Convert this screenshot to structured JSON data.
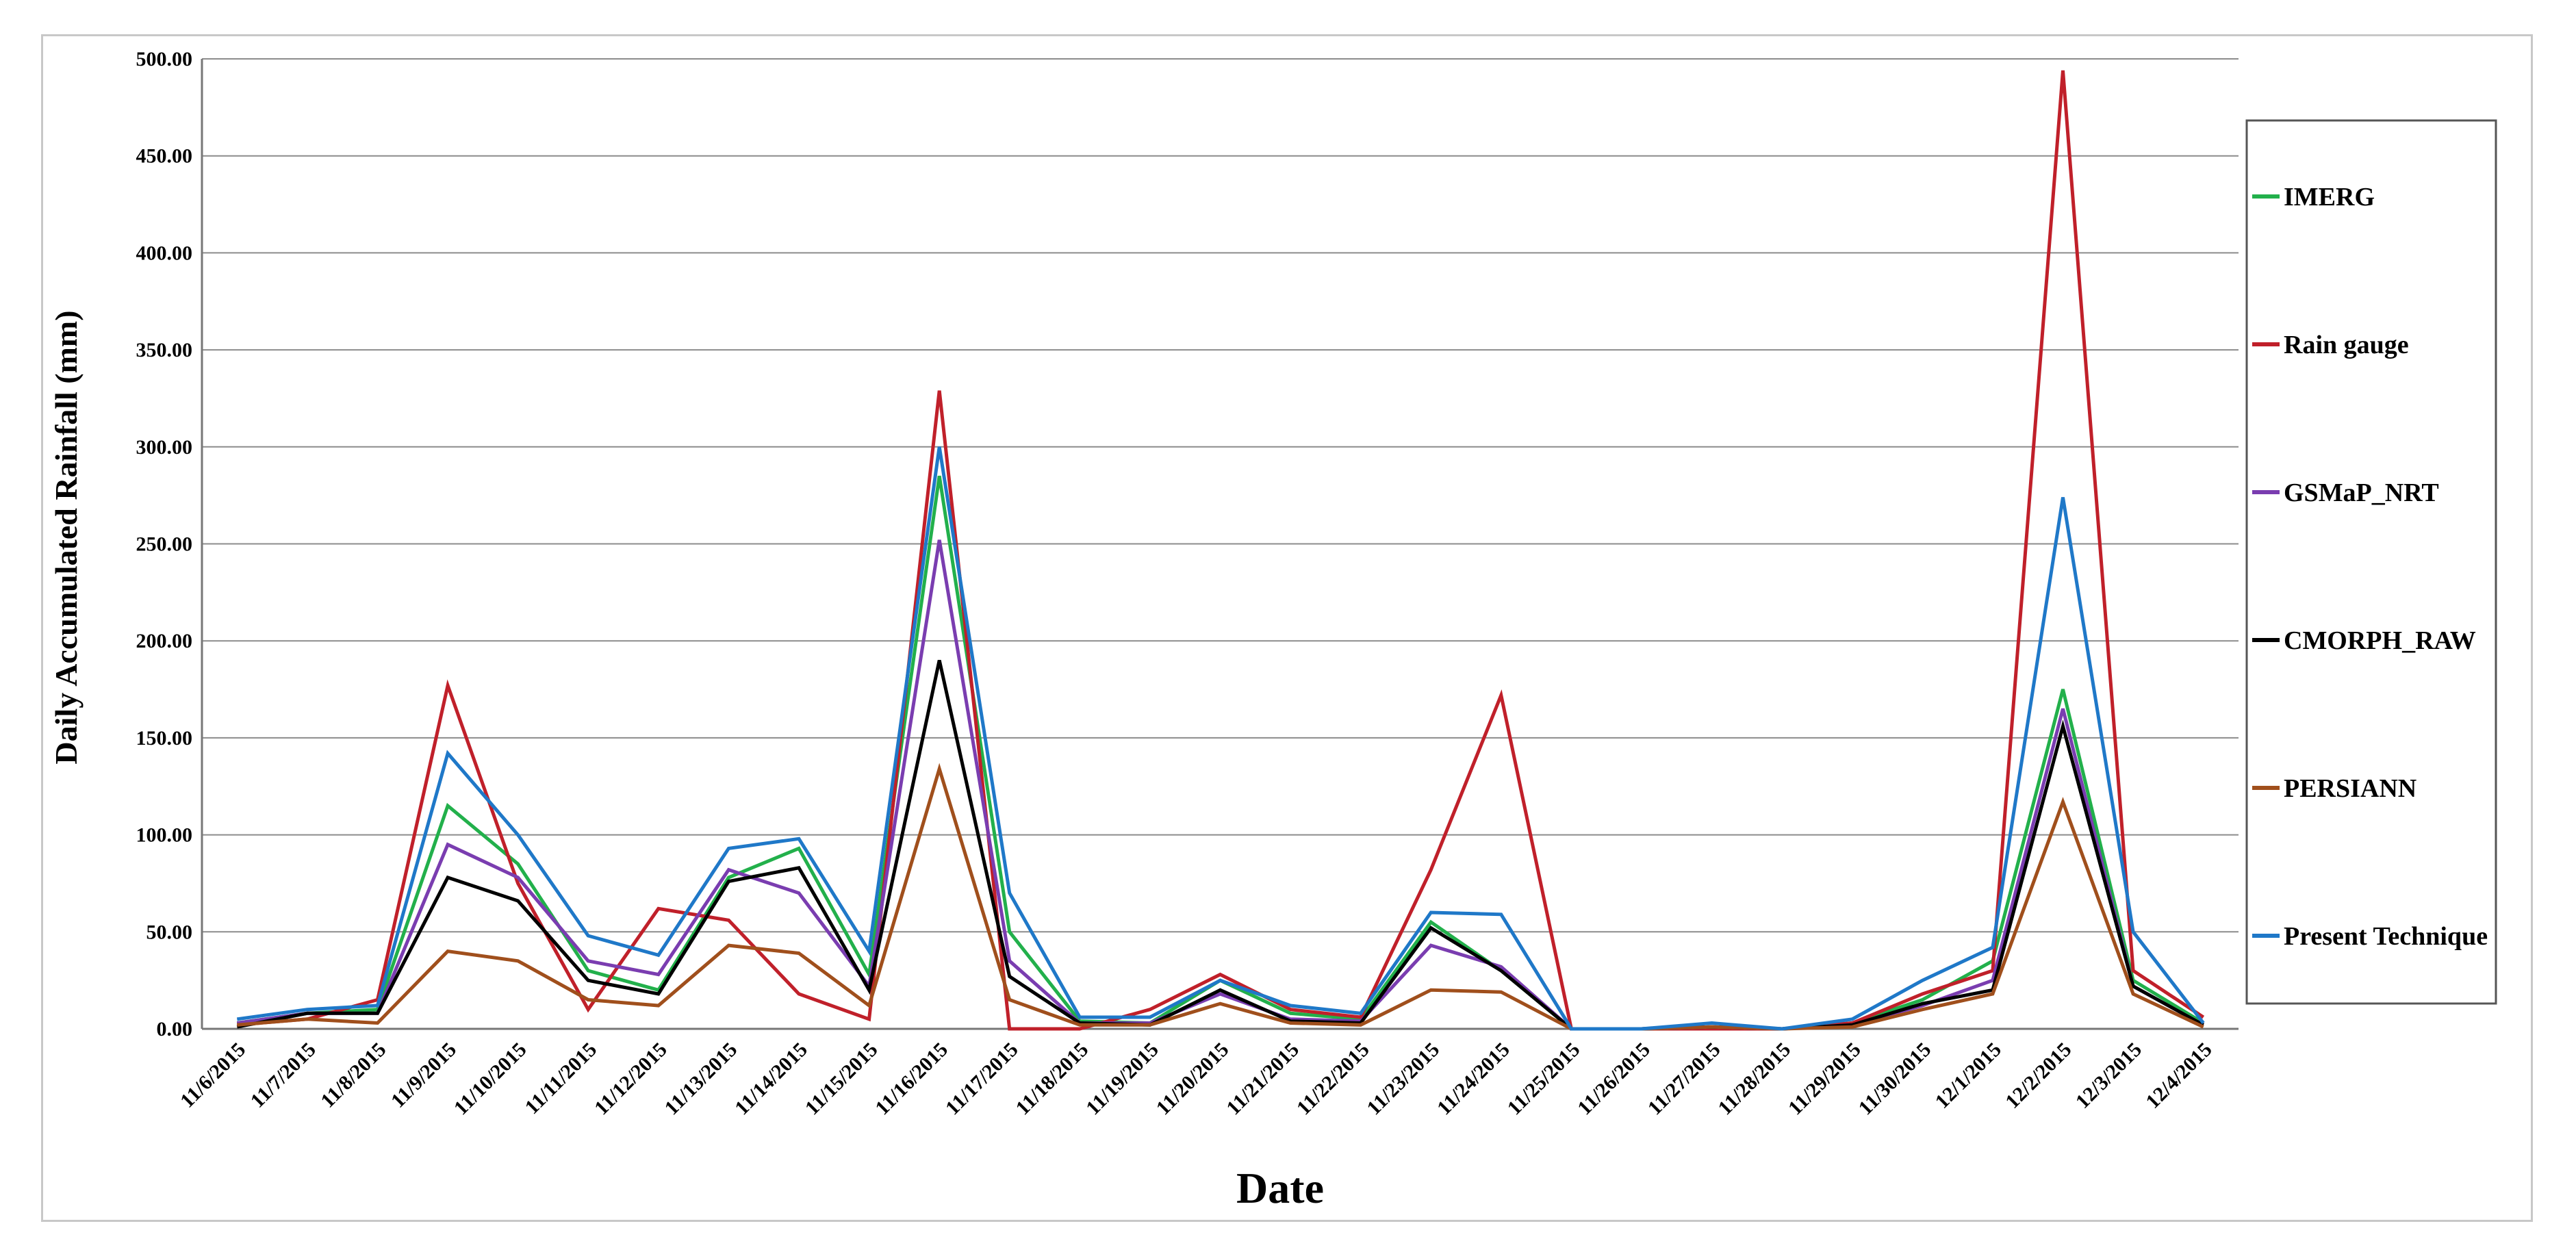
{
  "chart_data": {
    "type": "line",
    "title": "",
    "xlabel": "Date",
    "ylabel": "Daily Accumulated Rainfall (mm)",
    "ylim": [
      0,
      500
    ],
    "ytick_labels": [
      "0.00",
      "50.00",
      "100.00",
      "150.00",
      "200.00",
      "250.00",
      "300.00",
      "350.00",
      "400.00",
      "450.00",
      "500.00"
    ],
    "grid": "horizontal",
    "legend_position": "right",
    "categories": [
      "11/6/2015",
      "11/7/2015",
      "11/8/2015",
      "11/9/2015",
      "11/10/2015",
      "11/11/2015",
      "11/12/2015",
      "11/13/2015",
      "11/14/2015",
      "11/15/2015",
      "11/16/2015",
      "11/17/2015",
      "11/18/2015",
      "11/19/2015",
      "11/20/2015",
      "11/21/2015",
      "11/22/2015",
      "11/23/2015",
      "11/24/2015",
      "11/25/2015",
      "11/26/2015",
      "11/27/2015",
      "11/28/2015",
      "11/29/2015",
      "11/30/2015",
      "12/1/2015",
      "12/2/2015",
      "12/3/2015",
      "12/4/2015"
    ],
    "series": [
      {
        "name": "IMERG",
        "color": "#22b04b",
        "values": [
          3,
          8,
          10,
          115,
          85,
          30,
          20,
          78,
          93,
          28,
          285,
          50,
          4,
          3,
          25,
          8,
          5,
          55,
          30,
          0,
          0,
          1,
          0,
          3,
          15,
          35,
          175,
          25,
          3
        ]
      },
      {
        "name": "Rain gauge",
        "color": "#c0202a",
        "values": [
          2,
          5,
          15,
          177,
          75,
          10,
          62,
          56,
          18,
          5,
          329,
          0,
          0,
          10,
          28,
          10,
          6,
          82,
          172,
          0,
          0,
          0,
          0,
          3,
          18,
          30,
          494,
          30,
          6
        ]
      },
      {
        "name": "GSMaP_NRT",
        "color": "#7a3db0",
        "values": [
          3,
          8,
          8,
          95,
          78,
          35,
          28,
          82,
          70,
          22,
          252,
          35,
          3,
          3,
          18,
          5,
          4,
          43,
          32,
          0,
          0,
          1,
          0,
          2,
          12,
          25,
          165,
          22,
          2
        ]
      },
      {
        "name": "CMORPH_RAW",
        "color": "#000000",
        "values": [
          1,
          8,
          8,
          78,
          66,
          25,
          18,
          76,
          83,
          20,
          190,
          27,
          3,
          2,
          20,
          4,
          3,
          52,
          30,
          0,
          0,
          1,
          0,
          2,
          13,
          20,
          156,
          22,
          2
        ]
      },
      {
        "name": "PERSIANN",
        "color": "#a04f1c",
        "values": [
          2,
          5,
          3,
          40,
          35,
          15,
          12,
          43,
          39,
          12,
          134,
          15,
          2,
          2,
          13,
          3,
          2,
          20,
          19,
          0,
          0,
          1,
          0,
          1,
          10,
          18,
          117,
          18,
          1
        ]
      },
      {
        "name": "Present Technique",
        "color": "#1f78c8",
        "values": [
          5,
          10,
          12,
          142,
          100,
          48,
          38,
          93,
          98,
          40,
          300,
          70,
          6,
          6,
          25,
          12,
          8,
          60,
          59,
          0,
          0,
          3,
          0,
          5,
          25,
          42,
          274,
          50,
          3
        ]
      }
    ]
  }
}
